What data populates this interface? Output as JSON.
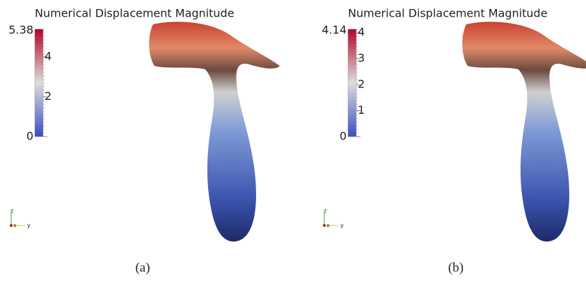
{
  "panels": [
    {
      "title": "Numerical Displacement Magnitude",
      "colorbar": {
        "min": 0,
        "max": 5.38,
        "ticks": [
          0,
          2,
          4
        ]
      },
      "axes_labels": [
        "z",
        "x",
        "y"
      ],
      "caption": "(a)"
    },
    {
      "title": "Numerical Displacement Magnitude",
      "colorbar": {
        "min": 0,
        "max": 4.14,
        "ticks": [
          0,
          1,
          2,
          3,
          4
        ]
      },
      "axes_labels": [
        "z",
        "x",
        "y"
      ],
      "caption": "(b)"
    }
  ]
}
